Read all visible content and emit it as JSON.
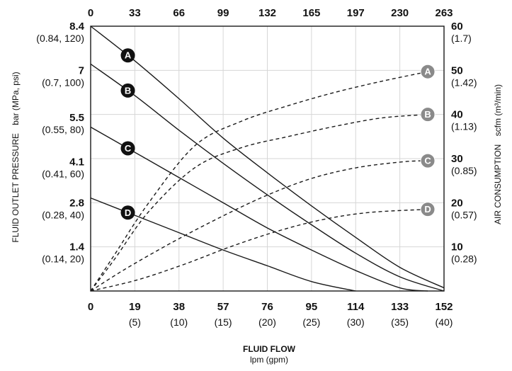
{
  "chart_data": {
    "type": "line",
    "x": [
      0,
      19,
      38,
      57,
      76,
      95,
      114,
      133,
      152
    ],
    "x_secondary": [
      0,
      5,
      10,
      15,
      20,
      25,
      30,
      35,
      40
    ],
    "xlim": [
      0,
      152
    ],
    "top_axis": {
      "ticks": [
        "0",
        "33",
        "66",
        "99",
        "132",
        "165",
        "197",
        "230",
        "263"
      ]
    },
    "left_axis": {
      "label": "FLUID OUTLET PRESSURE",
      "unit": "bar (MPa, psi)",
      "ylim": [
        0,
        8.4
      ],
      "ticks": [
        {
          "value": 8.4,
          "label": "8.4",
          "sub": "(0.84, 120)"
        },
        {
          "value": 7,
          "label": "7",
          "sub": "(0.7, 100)"
        },
        {
          "value": 5.5,
          "label": "5.5",
          "sub": "(0.55, 80)"
        },
        {
          "value": 4.1,
          "label": "4.1",
          "sub": "(0.41, 60)"
        },
        {
          "value": 2.8,
          "label": "2.8",
          "sub": "(0.28, 40)"
        },
        {
          "value": 1.4,
          "label": "1.4",
          "sub": "(0.14, 20)"
        }
      ]
    },
    "right_axis": {
      "label": "AIR CONSUMPTION",
      "unit": "scfm (m³/min)",
      "ylim": [
        0,
        60
      ],
      "ticks": [
        {
          "value": 60,
          "label": "60",
          "sub": "(1.7)"
        },
        {
          "value": 50,
          "label": "50",
          "sub": "(1.42)"
        },
        {
          "value": 40,
          "label": "40",
          "sub": "(1.13)"
        },
        {
          "value": 30,
          "label": "30",
          "sub": "(0.85)"
        },
        {
          "value": 20,
          "label": "20",
          "sub": "(0.57)"
        },
        {
          "value": 10,
          "label": "10",
          "sub": "(0.28)"
        }
      ]
    },
    "x_axis": {
      "label": "FLUID FLOW",
      "unit": "lpm (gpm)",
      "ticks": [
        "0",
        "19",
        "38",
        "57",
        "76",
        "95",
        "114",
        "133",
        "152"
      ],
      "sub_ticks": [
        "(5)",
        "(10)",
        "(15)",
        "(20)",
        "(25)",
        "(30)",
        "(35)",
        "(40)"
      ]
    },
    "grid": true,
    "pressure_series": [
      {
        "name": "A",
        "marker_x": 16,
        "points": [
          [
            0,
            8.4
          ],
          [
            19,
            7.3
          ],
          [
            38,
            6.1
          ],
          [
            57,
            4.85
          ],
          [
            76,
            3.75
          ],
          [
            95,
            2.7
          ],
          [
            114,
            1.7
          ],
          [
            133,
            0.75
          ],
          [
            152,
            0.1
          ]
        ]
      },
      {
        "name": "B",
        "marker_x": 16,
        "points": [
          [
            0,
            7.2
          ],
          [
            19,
            6.2
          ],
          [
            38,
            5.1
          ],
          [
            57,
            4.05
          ],
          [
            76,
            3.05
          ],
          [
            95,
            2.1
          ],
          [
            114,
            1.2
          ],
          [
            133,
            0.45
          ],
          [
            152,
            0
          ]
        ]
      },
      {
        "name": "C",
        "marker_x": 16,
        "points": [
          [
            0,
            5.2
          ],
          [
            19,
            4.4
          ],
          [
            38,
            3.6
          ],
          [
            57,
            2.8
          ],
          [
            76,
            2.0
          ],
          [
            95,
            1.3
          ],
          [
            114,
            0.65
          ],
          [
            133,
            0.1
          ],
          [
            145,
            0
          ]
        ]
      },
      {
        "name": "D",
        "marker_x": 16,
        "points": [
          [
            0,
            2.95
          ],
          [
            19,
            2.4
          ],
          [
            38,
            1.85
          ],
          [
            57,
            1.3
          ],
          [
            76,
            0.8
          ],
          [
            95,
            0.3
          ],
          [
            114,
            0
          ]
        ]
      }
    ],
    "air_series": [
      {
        "name": "A",
        "marker_x": 145,
        "points": [
          [
            0,
            0
          ],
          [
            10,
            8
          ],
          [
            25,
            20
          ],
          [
            45,
            33
          ],
          [
            65,
            38.5
          ],
          [
            85,
            42
          ],
          [
            105,
            45
          ],
          [
            125,
            47.5
          ],
          [
            145,
            49.7
          ]
        ]
      },
      {
        "name": "B",
        "marker_x": 145,
        "points": [
          [
            0,
            0
          ],
          [
            10,
            7
          ],
          [
            25,
            18
          ],
          [
            45,
            28
          ],
          [
            65,
            32.5
          ],
          [
            85,
            35
          ],
          [
            105,
            37.3
          ],
          [
            125,
            39.2
          ],
          [
            145,
            40
          ]
        ]
      },
      {
        "name": "C",
        "marker_x": 145,
        "points": [
          [
            0,
            0
          ],
          [
            15,
            5
          ],
          [
            35,
            11
          ],
          [
            55,
            16.5
          ],
          [
            75,
            21.5
          ],
          [
            95,
            25.5
          ],
          [
            115,
            28
          ],
          [
            135,
            29.3
          ],
          [
            145,
            29.5
          ]
        ]
      },
      {
        "name": "D",
        "marker_x": 145,
        "points": [
          [
            0,
            0
          ],
          [
            20,
            2.5
          ],
          [
            40,
            6
          ],
          [
            60,
            10
          ],
          [
            80,
            13.5
          ],
          [
            100,
            16.2
          ],
          [
            120,
            17.8
          ],
          [
            145,
            18.5
          ]
        ]
      }
    ]
  }
}
